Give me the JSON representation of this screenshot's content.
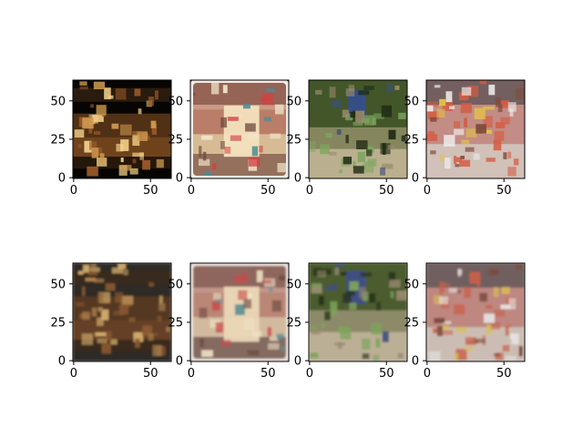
{
  "chart_data": {
    "type": "image-grid",
    "rows": 2,
    "cols": 4,
    "grid": false,
    "x_ticks": [
      0,
      50
    ],
    "y_ticks": [
      0,
      25,
      50
    ],
    "xlim": [
      -0.5,
      63.5
    ],
    "ylim": [
      63.5,
      -0.5
    ],
    "panels": [
      {
        "row": 0,
        "col": 0,
        "subject": "band performing on a dark stage",
        "palette": {
          "bg": "#070503",
          "bands": [
            {
              "from": 0.08,
              "to": 0.22,
              "color": "#2d1f10"
            },
            {
              "from": 0.34,
              "to": 0.58,
              "color": "#5a3617"
            },
            {
              "from": 0.58,
              "to": 0.78,
              "color": "#7a4a1f"
            },
            {
              "from": 0.78,
              "to": 0.9,
              "color": "#2a1a0c"
            }
          ],
          "accents": [
            {
              "color": "#f3d28a",
              "count": 18
            },
            {
              "color": "#9b5a2b",
              "count": 20
            },
            {
              "color": "#cf9b4f",
              "count": 12
            }
          ]
        }
      },
      {
        "row": 0,
        "col": 1,
        "subject": "beige appliance on table",
        "palette": {
          "bg": "#c99a84",
          "frame": "#f2ebe4",
          "bands": [
            {
              "from": 0.0,
              "to": 0.25,
              "color": "#8f5e52"
            },
            {
              "from": 0.3,
              "to": 0.55,
              "color": "#b87b65"
            },
            {
              "from": 0.55,
              "to": 0.75,
              "color": "#d8bf97"
            },
            {
              "from": 0.75,
              "to": 1.0,
              "color": "#8f6c58"
            }
          ],
          "accents": [
            {
              "color": "#f0e5c9",
              "count": 10
            },
            {
              "color": "#d43f3f",
              "count": 8
            },
            {
              "color": "#4c8c94",
              "count": 5
            },
            {
              "color": "#6f4a3d",
              "count": 6
            }
          ],
          "shape": {
            "color": "#f3e1bf",
            "rect": [
              0.34,
              0.26,
              0.36,
              0.52
            ]
          }
        }
      },
      {
        "row": 0,
        "col": 2,
        "subject": "cyclist on a forest trail",
        "palette": {
          "bg": "#4a5a2e",
          "bands": [
            {
              "from": 0.0,
              "to": 0.48,
              "color": "#42552a"
            },
            {
              "from": 0.48,
              "to": 0.7,
              "color": "#8c8b64"
            },
            {
              "from": 0.7,
              "to": 1.0,
              "color": "#c7b99a"
            }
          ],
          "accents": [
            {
              "color": "#7da55f",
              "count": 20
            },
            {
              "color": "#1f2b13",
              "count": 14
            },
            {
              "color": "#9a8a69",
              "count": 10
            },
            {
              "color": "#3a4f7a",
              "count": 4
            }
          ],
          "shape": {
            "color": "#354f8a",
            "rect": [
              0.4,
              0.1,
              0.18,
              0.3
            ]
          }
        }
      },
      {
        "row": 0,
        "col": 3,
        "subject": "seafood boil with corn on a table",
        "palette": {
          "bg": "#9f7a73",
          "bands": [
            {
              "from": 0.0,
              "to": 0.25,
              "color": "#6e5c5d"
            },
            {
              "from": 0.25,
              "to": 0.65,
              "color": "#c78e86"
            },
            {
              "from": 0.65,
              "to": 1.0,
              "color": "#d6c9c0"
            }
          ],
          "accents": [
            {
              "color": "#d45c43",
              "count": 24
            },
            {
              "color": "#e2c247",
              "count": 8
            },
            {
              "color": "#f0eeee",
              "count": 12
            },
            {
              "color": "#7f4b3b",
              "count": 10
            }
          ]
        }
      },
      {
        "row": 1,
        "col": 0,
        "subject": "reconstructed band performing on a dark stage",
        "palette": {
          "bg": "#2d2a25",
          "bands": [
            {
              "from": 0.08,
              "to": 0.22,
              "color": "#3b2c1f"
            },
            {
              "from": 0.34,
              "to": 0.58,
              "color": "#5a3a21"
            },
            {
              "from": 0.58,
              "to": 0.78,
              "color": "#6b4426"
            },
            {
              "from": 0.78,
              "to": 0.9,
              "color": "#3a2a1b"
            }
          ],
          "accents": [
            {
              "color": "#d7b06e",
              "count": 14
            },
            {
              "color": "#8c5a32",
              "count": 20
            },
            {
              "color": "#b08552",
              "count": 12
            }
          ],
          "blur": true
        }
      },
      {
        "row": 1,
        "col": 1,
        "subject": "reconstructed beige appliance on table",
        "palette": {
          "bg": "#c1968a",
          "frame": "#e8dfd8",
          "bands": [
            {
              "from": 0.0,
              "to": 0.25,
              "color": "#8a6058"
            },
            {
              "from": 0.3,
              "to": 0.55,
              "color": "#b98473"
            },
            {
              "from": 0.55,
              "to": 0.75,
              "color": "#d4bea0"
            },
            {
              "from": 0.75,
              "to": 1.0,
              "color": "#7d665b"
            }
          ],
          "accents": [
            {
              "color": "#efe2c6",
              "count": 10
            },
            {
              "color": "#c84b4b",
              "count": 8
            },
            {
              "color": "#5d8f92",
              "count": 5
            },
            {
              "color": "#6a4a3f",
              "count": 6
            }
          ],
          "shape": {
            "color": "#ead7b6",
            "rect": [
              0.34,
              0.24,
              0.36,
              0.56
            ]
          },
          "blur": true
        }
      },
      {
        "row": 1,
        "col": 2,
        "subject": "reconstructed cyclist on a forest trail",
        "palette": {
          "bg": "#526033",
          "bands": [
            {
              "from": 0.0,
              "to": 0.48,
              "color": "#4b5c2f"
            },
            {
              "from": 0.48,
              "to": 0.7,
              "color": "#928f6f"
            },
            {
              "from": 0.7,
              "to": 1.0,
              "color": "#c7b8a0"
            }
          ],
          "accents": [
            {
              "color": "#7ea35b",
              "count": 18
            },
            {
              "color": "#26321a",
              "count": 12
            },
            {
              "color": "#9a8a70",
              "count": 10
            },
            {
              "color": "#404f7d",
              "count": 4
            }
          ],
          "shape": {
            "color": "#3f4f86",
            "rect": [
              0.38,
              0.08,
              0.2,
              0.34
            ]
          },
          "blur": true
        }
      },
      {
        "row": 1,
        "col": 3,
        "subject": "reconstructed seafood boil with corn on a table",
        "palette": {
          "bg": "#94736c",
          "bands": [
            {
              "from": 0.0,
              "to": 0.25,
              "color": "#6d5d5e"
            },
            {
              "from": 0.25,
              "to": 0.65,
              "color": "#c28a83"
            },
            {
              "from": 0.65,
              "to": 1.0,
              "color": "#d2c5bc"
            }
          ],
          "accents": [
            {
              "color": "#c9614a",
              "count": 22
            },
            {
              "color": "#d9c04f",
              "count": 8
            },
            {
              "color": "#e8e6e6",
              "count": 12
            },
            {
              "color": "#7a4b3d",
              "count": 10
            }
          ],
          "blur": true
        }
      }
    ]
  }
}
